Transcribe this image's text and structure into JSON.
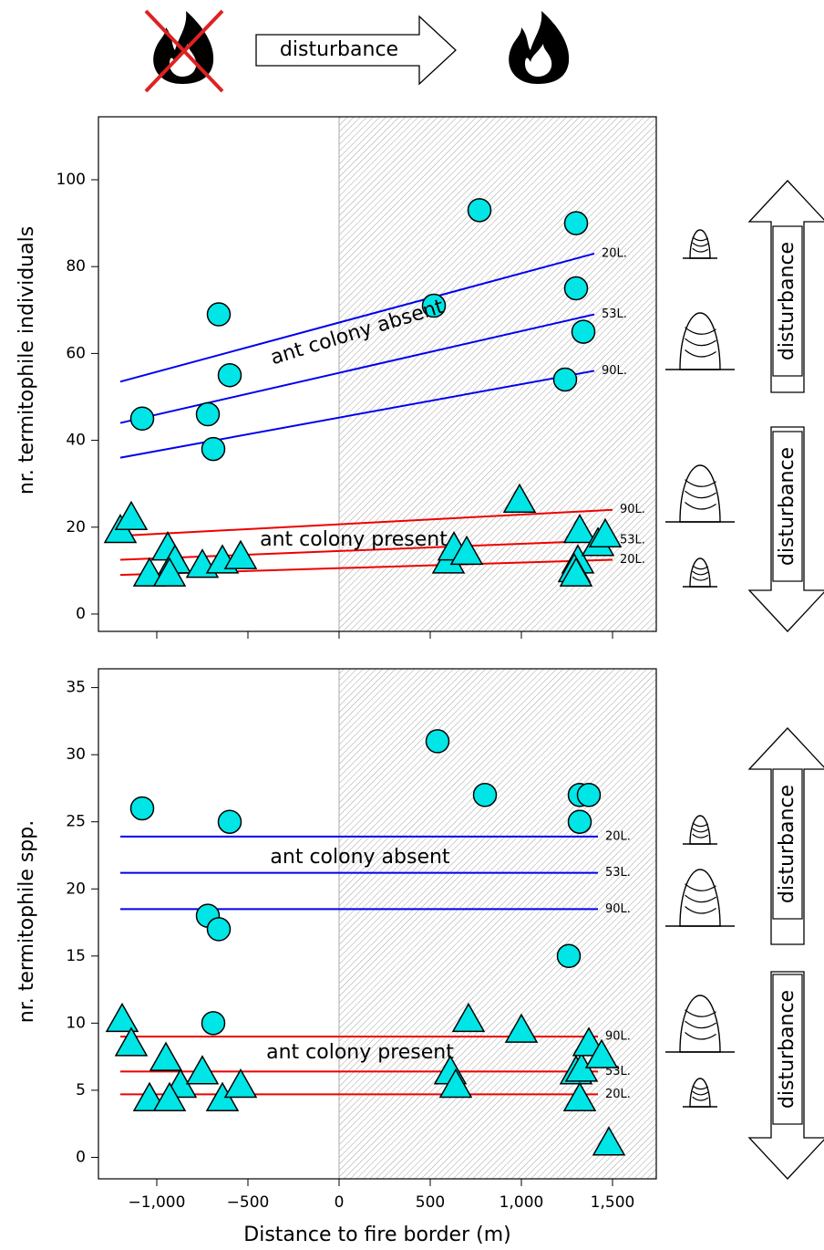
{
  "header": {
    "label": "disturbance"
  },
  "chart_data": [
    {
      "type": "scatter",
      "ylabel": "nr. termitophile individuals",
      "xlim": [
        -1320,
        1740
      ],
      "ylim": [
        -4,
        114.5
      ],
      "xticks": [
        -1000,
        -500,
        0,
        500,
        1000,
        1500
      ],
      "yticks": [
        0,
        20,
        40,
        60,
        80,
        100
      ],
      "shade_xlim": [
        0,
        1740
      ],
      "series": [
        {
          "marker": "circle",
          "color": "#00e6e6",
          "x": [
            -1080,
            -660,
            -600,
            -720,
            -690,
            520,
            770,
            1300,
            1300,
            1340,
            1240
          ],
          "values": [
            45,
            69,
            55,
            46,
            38,
            71,
            93,
            90,
            75,
            65,
            54
          ]
        },
        {
          "marker": "triangle",
          "color": "#00e6e6",
          "x": [
            -1200,
            -1140,
            -940,
            -900,
            -1040,
            -930,
            -750,
            -640,
            -540,
            600,
            630,
            700,
            990,
            1320,
            1310,
            1290,
            1300,
            1420,
            1460
          ],
          "values": [
            19,
            22,
            15,
            12,
            9,
            9,
            11,
            12,
            13,
            12,
            15,
            14,
            26,
            19,
            12,
            10,
            9,
            16,
            18
          ]
        }
      ],
      "lines": [
        {
          "name": "20L.",
          "color": "#0000ee",
          "x": [
            -1200,
            1400
          ],
          "values": [
            53.5,
            83
          ]
        },
        {
          "name": "53L.",
          "color": "#0000ee",
          "x": [
            -1200,
            1400
          ],
          "values": [
            44,
            69
          ]
        },
        {
          "name": "90L.",
          "color": "#0000ee",
          "x": [
            -1200,
            1400
          ],
          "values": [
            36,
            56
          ]
        },
        {
          "name": "90L.",
          "color": "#ee0000",
          "x": [
            -1200,
            1500
          ],
          "values": [
            18,
            24
          ]
        },
        {
          "name": "53L.",
          "color": "#ee0000",
          "x": [
            -1200,
            1500
          ],
          "values": [
            12.5,
            17
          ]
        },
        {
          "name": "20L.",
          "color": "#ee0000",
          "x": [
            -1200,
            1500
          ],
          "values": [
            9,
            12.5
          ]
        }
      ],
      "annotations": [
        "ant colony absent",
        "ant colony present"
      ],
      "side_labels": [
        "disturbance",
        "disturbance"
      ]
    },
    {
      "type": "scatter",
      "ylabel": "nr. termitophile spp.",
      "xlabel": "Distance to fire border (m)",
      "xlim": [
        -1320,
        1740
      ],
      "ylim": [
        -1.6,
        36.4
      ],
      "xticks": [
        {
          "value": -1000,
          "label": "−1,000"
        },
        {
          "value": -500,
          "label": "−500"
        },
        0,
        500,
        {
          "value": 1000,
          "label": "1,000"
        },
        {
          "value": 1500,
          "label": "1,500"
        }
      ],
      "yticks": [
        0,
        5,
        10,
        15,
        20,
        25,
        30,
        35
      ],
      "shade_xlim": [
        0,
        1740
      ],
      "series": [
        {
          "marker": "circle",
          "color": "#00e6e6",
          "x": [
            -1080,
            -600,
            -720,
            -660,
            -690,
            540,
            800,
            1320,
            1370,
            1320,
            1260
          ],
          "values": [
            26,
            25,
            18,
            17,
            10,
            31,
            27,
            27,
            27,
            25,
            15
          ]
        },
        {
          "marker": "triangle",
          "color": "#00e6e6",
          "x": [
            -1190,
            -1140,
            -950,
            -870,
            -1040,
            -930,
            -750,
            -640,
            -540,
            610,
            640,
            710,
            1000,
            1300,
            1320,
            1330,
            1370,
            1440,
            1480
          ],
          "values": [
            10.2,
            8.4,
            7.3,
            5.3,
            4.3,
            4.3,
            6.3,
            4.3,
            5.3,
            6.3,
            5.3,
            10.2,
            9.4,
            6.3,
            4.3,
            6.5,
            8.4,
            7.5,
            1
          ]
        }
      ],
      "lines": [
        {
          "name": "20L.",
          "color": "#0000ee",
          "x": [
            -1200,
            1420
          ],
          "values": [
            23.9,
            23.9
          ]
        },
        {
          "name": "53L.",
          "color": "#0000ee",
          "x": [
            -1200,
            1420
          ],
          "values": [
            21.2,
            21.2
          ]
        },
        {
          "name": "90L.",
          "color": "#0000ee",
          "x": [
            -1200,
            1420
          ],
          "values": [
            18.5,
            18.5
          ]
        },
        {
          "name": "90L.",
          "color": "#ee0000",
          "x": [
            -1200,
            1420
          ],
          "values": [
            9,
            9
          ]
        },
        {
          "name": "53L.",
          "color": "#ee0000",
          "x": [
            -1200,
            1420
          ],
          "values": [
            6.4,
            6.4
          ]
        },
        {
          "name": "20L.",
          "color": "#ee0000",
          "x": [
            -1200,
            1420
          ],
          "values": [
            4.7,
            4.7
          ]
        }
      ],
      "annotations": [
        "ant colony absent",
        "ant colony present"
      ],
      "side_labels": [
        "disturbance",
        "disturbance"
      ]
    }
  ]
}
